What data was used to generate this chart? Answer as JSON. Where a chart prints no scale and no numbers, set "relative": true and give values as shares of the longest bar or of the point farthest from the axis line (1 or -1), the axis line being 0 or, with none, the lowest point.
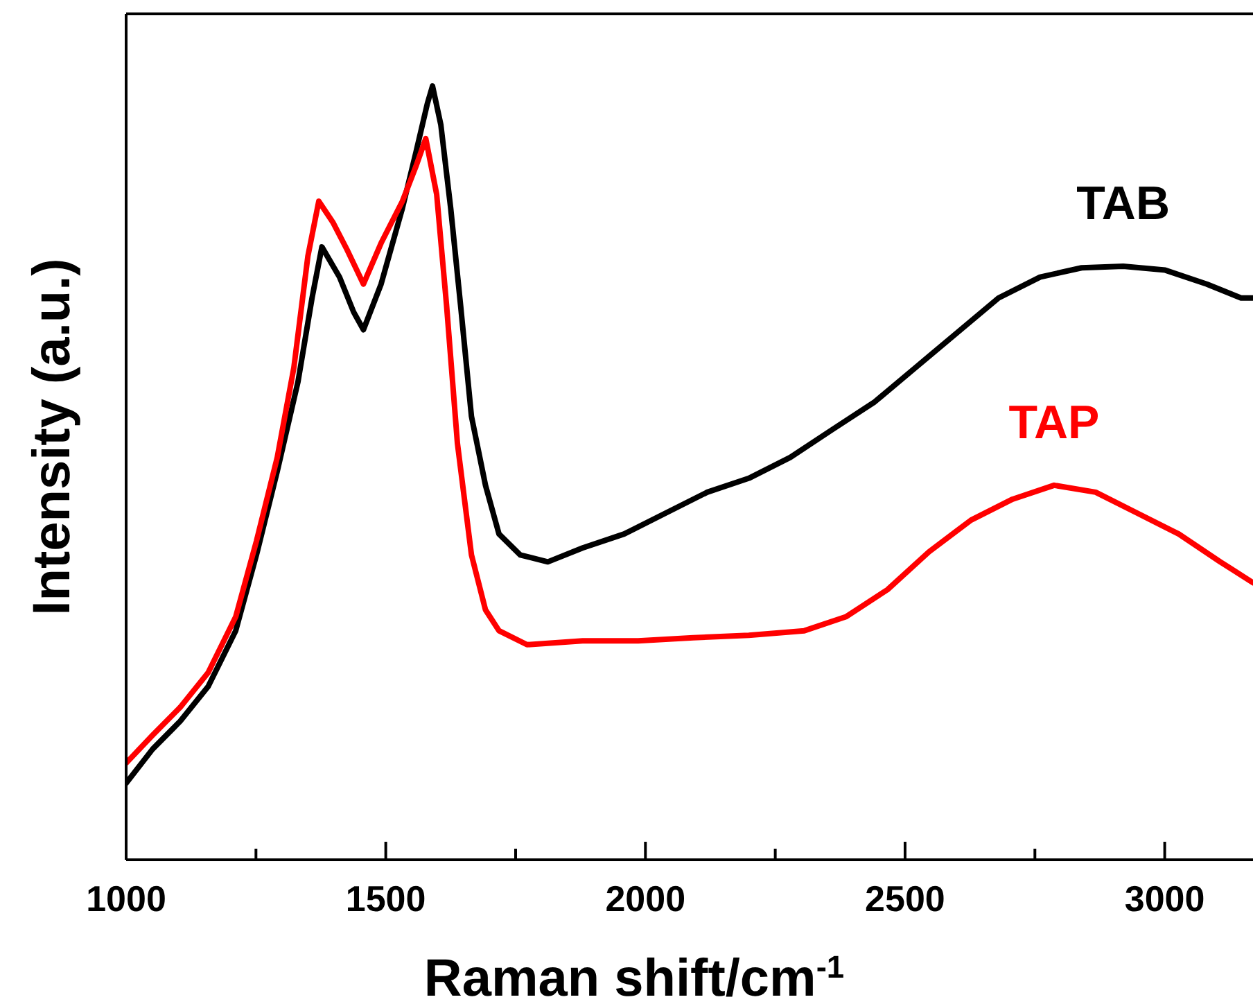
{
  "chart_data": {
    "type": "line",
    "xlabel": "Raman shift/cm$^{-1}$",
    "ylabel": "Intensity (a.u.)",
    "relative": true,
    "xlim": [
      1000,
      3170
    ],
    "xticks": [
      1000,
      {
        "value": 1250,
        "label": null
      },
      1500,
      {
        "value": 1750,
        "label": null
      },
      2000,
      {
        "value": 2250,
        "label": null
      },
      2500,
      {
        "value": 2750,
        "label": null
      },
      3000
    ],
    "series": [
      {
        "name": "TAB",
        "color": "#000000",
        "x": [
          1000,
          1051,
          1104,
          1158,
          1211,
          1251,
          1291,
          1331,
          1358,
          1377,
          1411,
          1438,
          1457,
          1491,
          1532,
          1558,
          1580,
          1590,
          1606,
          1625,
          1644,
          1665,
          1692,
          1718,
          1759,
          1812,
          1879,
          1959,
          2039,
          2119,
          2199,
          2279,
          2360,
          2440,
          2520,
          2600,
          2680,
          2760,
          2840,
          2920,
          3001,
          3081,
          3147,
          3170
        ],
        "values": [
          0.099,
          0.143,
          0.179,
          0.224,
          0.296,
          0.394,
          0.502,
          0.618,
          0.726,
          0.792,
          0.753,
          0.708,
          0.685,
          0.744,
          0.842,
          0.914,
          0.977,
          1.0,
          0.95,
          0.842,
          0.717,
          0.573,
          0.484,
          0.421,
          0.394,
          0.385,
          0.403,
          0.421,
          0.448,
          0.475,
          0.493,
          0.52,
          0.556,
          0.591,
          0.636,
          0.681,
          0.726,
          0.753,
          0.765,
          0.767,
          0.762,
          0.744,
          0.726,
          0.726
        ]
      },
      {
        "name": "TAP",
        "color": "#ff0000",
        "x": [
          1000,
          1051,
          1104,
          1158,
          1211,
          1251,
          1291,
          1323,
          1350,
          1371,
          1398,
          1425,
          1457,
          1491,
          1532,
          1558,
          1577,
          1598,
          1617,
          1638,
          1665,
          1692,
          1718,
          1772,
          1879,
          1986,
          2092,
          2199,
          2306,
          2386,
          2466,
          2546,
          2627,
          2707,
          2787,
          2867,
          2947,
          3027,
          3107,
          3170
        ],
        "values": [
          0.125,
          0.161,
          0.197,
          0.242,
          0.314,
          0.412,
          0.52,
          0.636,
          0.78,
          0.851,
          0.824,
          0.789,
          0.744,
          0.797,
          0.851,
          0.896,
          0.932,
          0.86,
          0.717,
          0.538,
          0.394,
          0.323,
          0.296,
          0.278,
          0.283,
          0.283,
          0.287,
          0.29,
          0.296,
          0.314,
          0.349,
          0.398,
          0.439,
          0.466,
          0.484,
          0.475,
          0.448,
          0.421,
          0.385,
          0.358
        ]
      }
    ]
  }
}
